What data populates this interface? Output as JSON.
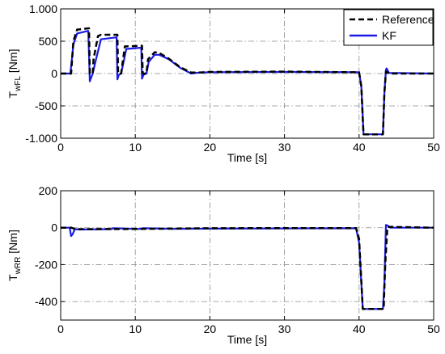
{
  "colors": {
    "reference": "#000000",
    "kf": "#1a1ae6",
    "grid": "#8c8c8c",
    "axis": "#000000"
  },
  "chart_data": [
    {
      "type": "line",
      "xlabel": "Time [s]",
      "ylabel_main": "T",
      "ylabel_sub": "wFL",
      "ylabel_unit": " [Nm]",
      "xlim": [
        0,
        50
      ],
      "ylim": [
        -1000,
        1000
      ],
      "xticks": [
        0,
        10,
        20,
        30,
        40,
        50
      ],
      "xtick_labels": [
        "0",
        "10",
        "20",
        "30",
        "40",
        "50"
      ],
      "yticks": [
        -1000,
        -500,
        0,
        500,
        1000
      ],
      "ytick_labels": [
        "-1.000",
        "-500",
        "0",
        "500",
        "1.000"
      ],
      "grid": true,
      "legend_position": "top-right",
      "series": [
        {
          "name": "Reference",
          "style": "dashed",
          "x": [
            0,
            1.4,
            1.7,
            2.2,
            3.8,
            3.9,
            4.3,
            4.4,
            5.0,
            5.4,
            7.6,
            7.7,
            8.1,
            8.6,
            10.9,
            11.0,
            11.5,
            11.7,
            12.6,
            13.2,
            14.5,
            16.0,
            17.5,
            18.5,
            20.0,
            30.0,
            39.5,
            40.0,
            40.3,
            40.6,
            43.2,
            43.4,
            43.6,
            44.0,
            50.0
          ],
          "y": [
            0,
            0,
            500,
            680,
            700,
            0,
            0,
            220,
            580,
            600,
            600,
            0,
            0,
            420,
            430,
            0,
            0,
            220,
            330,
            320,
            230,
            100,
            15,
            15,
            25,
            30,
            20,
            20,
            -200,
            -940,
            -940,
            -300,
            30,
            0,
            0
          ]
        },
        {
          "name": "KF",
          "style": "solid",
          "x": [
            0,
            1.3,
            1.7,
            2.2,
            3.7,
            3.9,
            4.1,
            4.3,
            4.7,
            5.4,
            7.5,
            7.6,
            7.8,
            8.1,
            8.8,
            10.8,
            10.9,
            11.1,
            11.5,
            11.8,
            12.6,
            13.2,
            14.5,
            16.0,
            17.5,
            18.5,
            20.0,
            30.0,
            39.5,
            40.0,
            40.3,
            40.6,
            43.2,
            43.4,
            43.6,
            43.7,
            44.0,
            50.0
          ],
          "y": [
            0,
            0,
            450,
            620,
            660,
            -120,
            -60,
            0,
            200,
            530,
            560,
            -90,
            -20,
            0,
            380,
            400,
            -80,
            -20,
            0,
            180,
            290,
            290,
            220,
            90,
            0,
            15,
            20,
            25,
            20,
            20,
            -200,
            -940,
            -940,
            -300,
            60,
            80,
            10,
            0
          ]
        }
      ]
    },
    {
      "type": "line",
      "xlabel": "Time [s]",
      "ylabel_main": "T",
      "ylabel_sub": "wRR",
      "ylabel_unit": " [Nm]",
      "xlim": [
        0,
        50
      ],
      "ylim": [
        -500,
        200
      ],
      "xticks": [
        0,
        10,
        20,
        30,
        40,
        50
      ],
      "xtick_labels": [
        "0",
        "10",
        "20",
        "30",
        "40",
        "50"
      ],
      "yticks": [
        -400,
        -200,
        0,
        200
      ],
      "ytick_labels": [
        "-400",
        "-200",
        "0",
        "200"
      ],
      "grid": true,
      "series": [
        {
          "name": "Reference",
          "style": "dashed",
          "x": [
            0,
            1.4,
            1.8,
            2.5,
            10.0,
            20.0,
            30.0,
            39.6,
            40.0,
            40.5,
            43.3,
            43.5,
            43.8,
            50.0
          ],
          "y": [
            0,
            0,
            -5,
            -8,
            -7,
            -3,
            -2,
            -2,
            -60,
            -440,
            -440,
            -200,
            5,
            0
          ],
          "y_extra": []
        },
        {
          "name": "KF",
          "style": "solid",
          "x": [
            0,
            1.2,
            1.4,
            1.6,
            1.9,
            2.5,
            6.8,
            7.0,
            10.5,
            11.0,
            15.0,
            20.0,
            30.0,
            39.6,
            40.0,
            40.5,
            43.2,
            43.4,
            43.6,
            43.8,
            44.2,
            50.0
          ],
          "y": [
            0,
            0,
            -45,
            -35,
            -8,
            -10,
            -8,
            -3,
            -7,
            -3,
            -6,
            -5,
            -4,
            -3,
            -80,
            -440,
            -440,
            -300,
            15,
            12,
            0,
            0
          ]
        }
      ]
    }
  ]
}
